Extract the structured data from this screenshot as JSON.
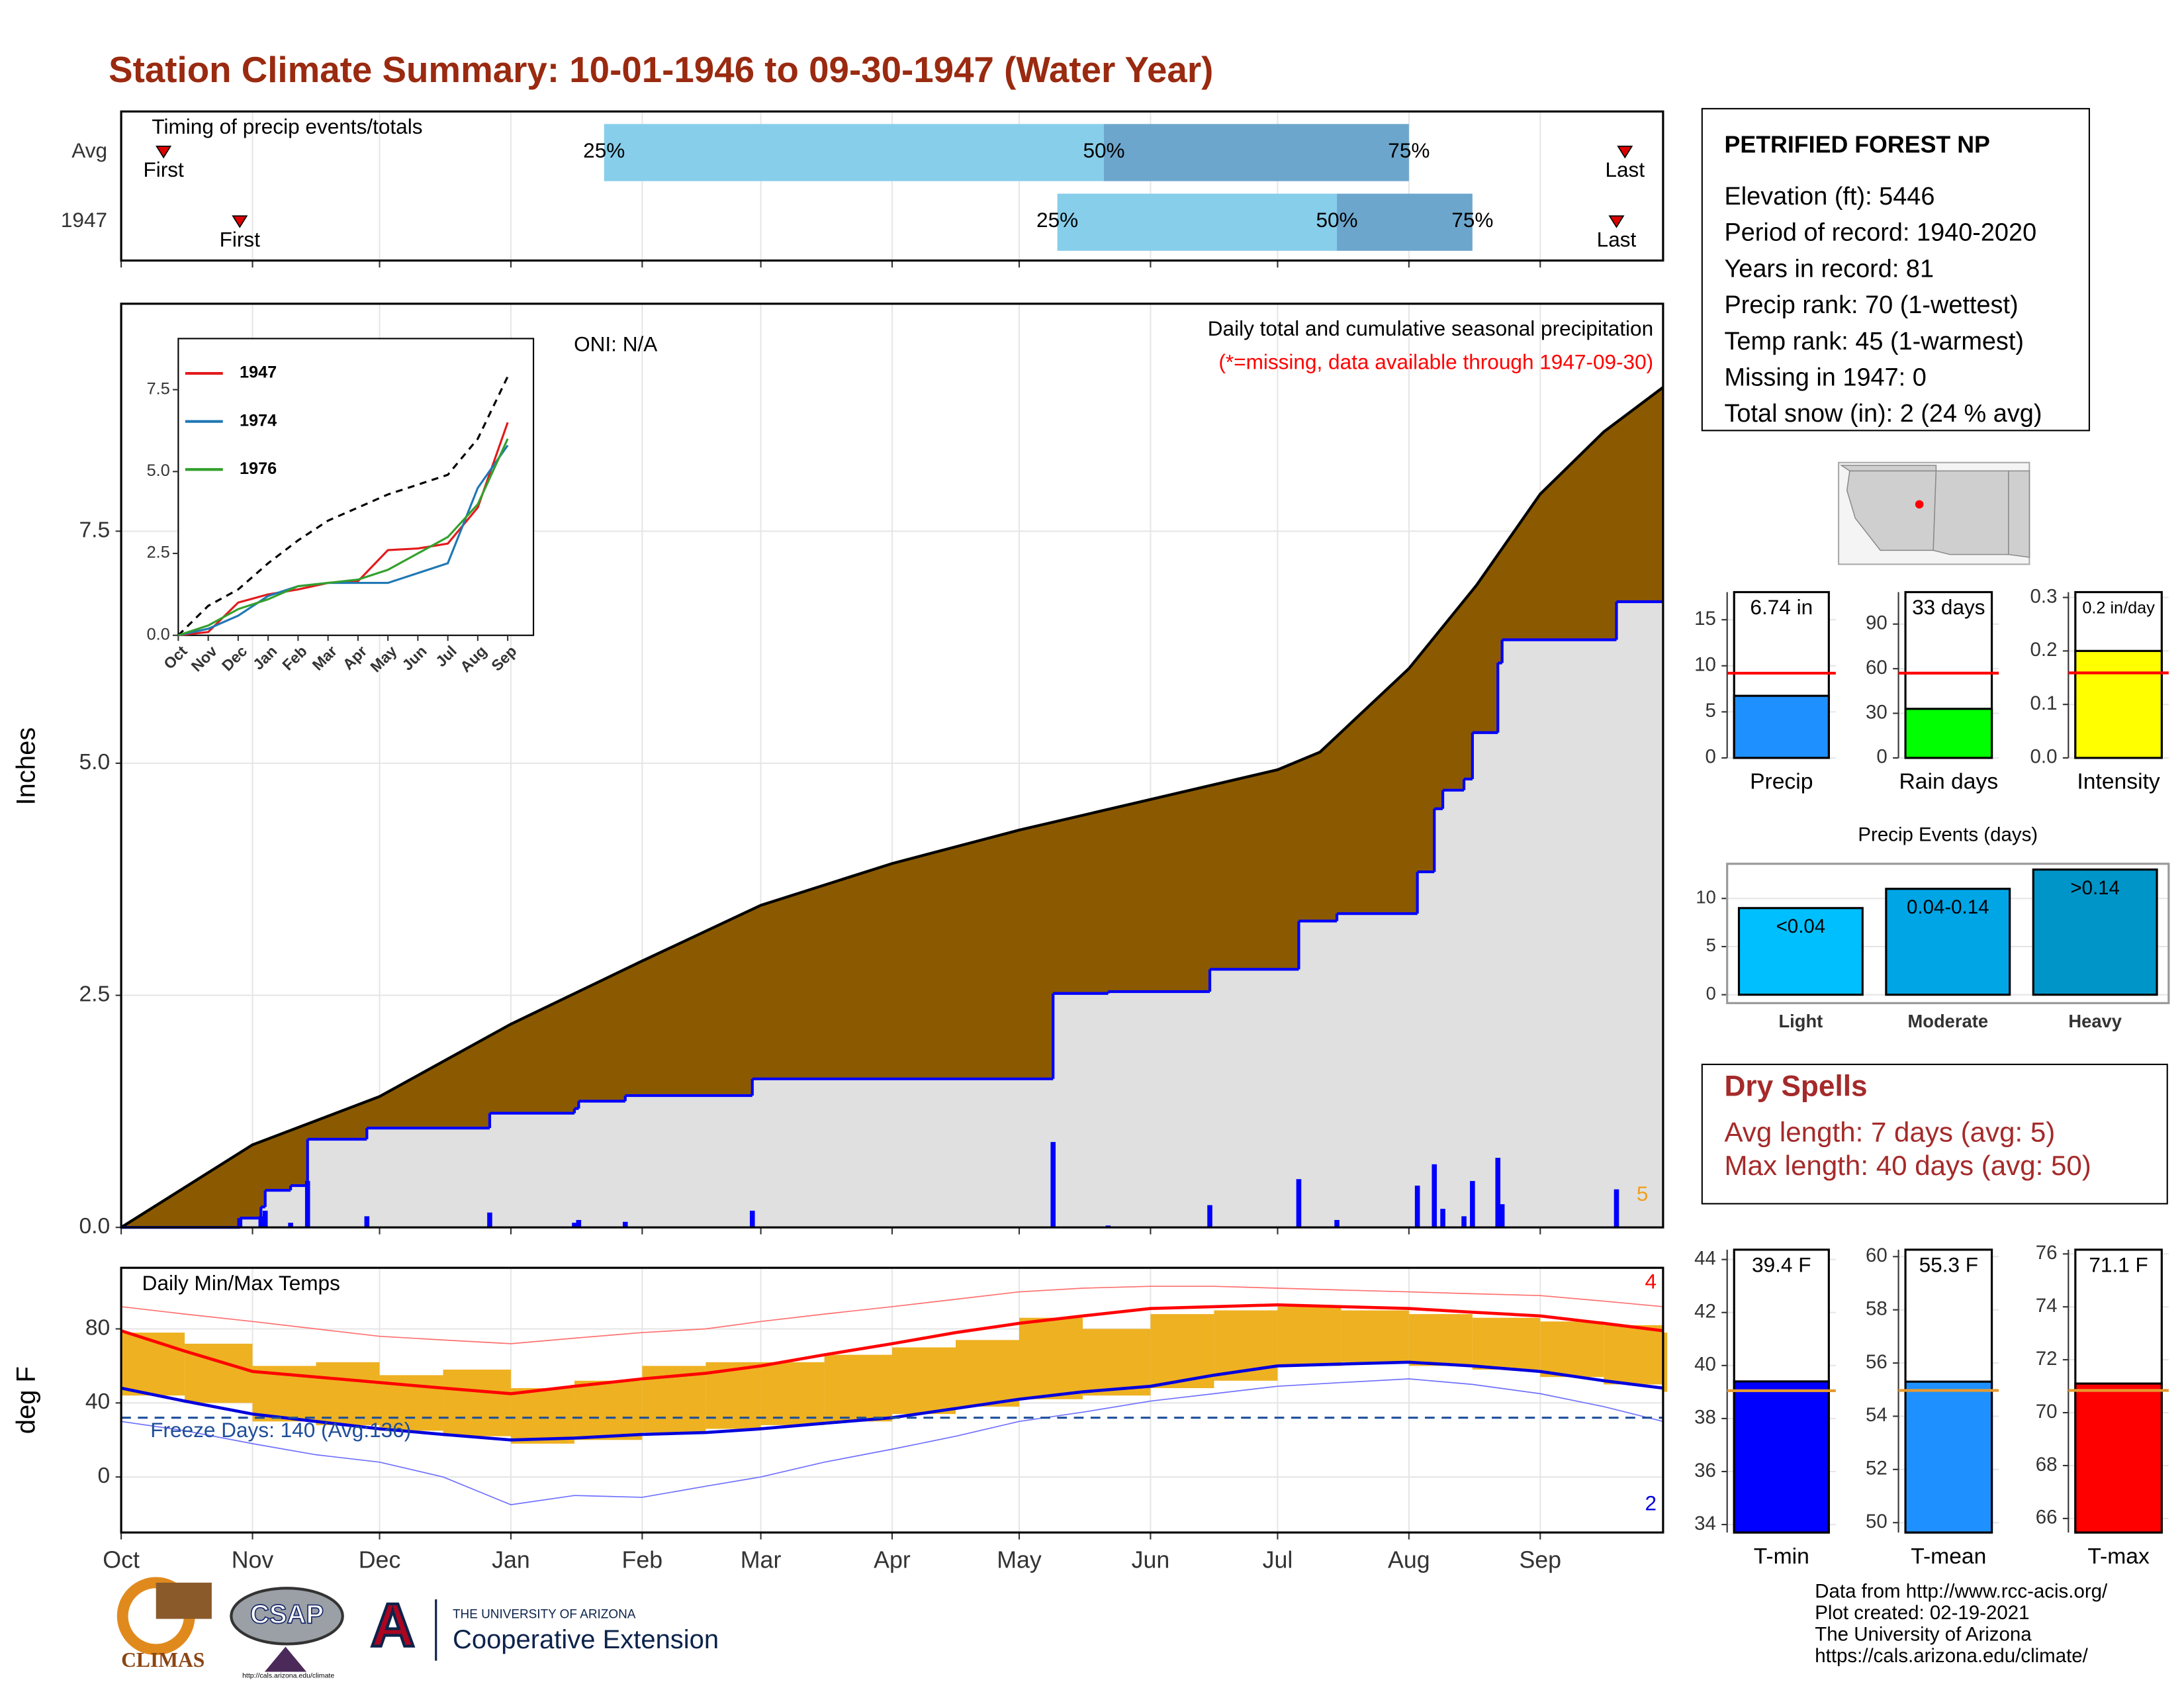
{
  "title": "Station Climate Summary: 10-01-1946 to 09-30-1947 (Water Year)",
  "chart_data": [
    {
      "type": "timing",
      "title": "Timing of precip events/totals",
      "xlim": [
        0,
        364
      ],
      "grid": true,
      "categories": [
        "Avg",
        "1947"
      ],
      "first": [
        10,
        28
      ],
      "last": [
        355,
        353
      ],
      "p25": [
        114,
        221
      ],
      "p50": [
        232,
        287
      ],
      "p75": [
        304,
        319
      ],
      "percent_labels": [
        "25%",
        "50%",
        "75%"
      ],
      "first_label": "First",
      "last_label": "Last",
      "colors": [
        "#87ceeb",
        "#6ca6cd"
      ],
      "marker_color": "#dd0000"
    },
    {
      "type": "precip",
      "title": "Daily total and cumulative seasonal precipitation",
      "subtitle": "(*=missing, data available through 1947-09-30)",
      "annotation": "ONI: N/A",
      "top_events_label": "5",
      "ylabel": "Inches",
      "xlim": [
        0,
        364
      ],
      "ylim": [
        0,
        9.95
      ],
      "grid": true,
      "yticks": [
        {
          "value": 0,
          "label": "0.0"
        },
        2.5,
        {
          "value": 5,
          "label": "5.0"
        },
        7.5
      ],
      "average": {
        "color": "#8b5a00",
        "x": [
          0,
          31,
          61,
          92,
          123,
          151,
          182,
          212,
          243,
          273,
          283,
          304,
          320,
          335,
          350,
          364
        ],
        "values": [
          0,
          0.89,
          1.41,
          2.19,
          2.87,
          3.47,
          3.92,
          4.28,
          4.61,
          4.93,
          5.12,
          6.02,
          6.92,
          7.9,
          8.57,
          9.05
        ]
      },
      "cumulative": {
        "color": "#0000ff",
        "x": [
          0,
          28,
          33,
          34,
          40,
          44,
          58,
          87,
          107,
          108,
          119,
          149,
          220,
          233,
          257,
          278,
          287,
          306,
          310,
          312,
          317,
          319,
          325,
          326,
          353
        ],
        "values": [
          0,
          0.1,
          0.22,
          0.4,
          0.45,
          0.95,
          1.07,
          1.23,
          1.28,
          1.36,
          1.42,
          1.6,
          2.52,
          2.54,
          2.78,
          3.3,
          3.38,
          3.83,
          4.51,
          4.71,
          4.83,
          5.33,
          6.08,
          6.33,
          6.74
        ]
      },
      "daily": {
        "color": "#0000ff",
        "x": [
          28,
          33,
          34,
          40,
          44,
          58,
          87,
          107,
          108,
          119,
          149,
          220,
          233,
          257,
          278,
          287,
          306,
          310,
          312,
          317,
          319,
          325,
          326,
          353
        ],
        "values": [
          0.1,
          0.12,
          0.18,
          0.05,
          0.5,
          0.12,
          0.16,
          0.05,
          0.08,
          0.06,
          0.18,
          0.92,
          0.02,
          0.24,
          0.52,
          0.08,
          0.45,
          0.68,
          0.2,
          0.12,
          0.5,
          0.75,
          0.25,
          0.41
        ]
      }
    },
    {
      "type": "line",
      "categories": [
        "Oct",
        "Nov",
        "Dec",
        "Jan",
        "Feb",
        "Mar",
        "Apr",
        "May",
        "Jun",
        "Jul",
        "Aug",
        "Sep"
      ],
      "ylim": [
        0,
        9.06
      ],
      "yticks": [
        {
          "value": 0,
          "label": "0.0"
        },
        2.5,
        {
          "value": 5,
          "label": "5.0"
        },
        7.5
      ],
      "average": {
        "color": "#000000",
        "values": [
          0,
          0.9,
          1.4,
          2.2,
          2.9,
          3.5,
          3.9,
          4.3,
          4.6,
          4.9,
          6.0,
          7.9
        ]
      },
      "series": [
        {
          "name": "1947",
          "color": "#e31a1c",
          "values": [
            0,
            0.1,
            1.0,
            1.25,
            1.4,
            1.6,
            1.65,
            2.6,
            2.65,
            2.8,
            3.9,
            6.5
          ]
        },
        {
          "name": "1974",
          "color": "#1f78b4",
          "values": [
            0,
            0.2,
            0.6,
            1.2,
            1.5,
            1.6,
            1.6,
            1.6,
            1.9,
            2.2,
            4.5,
            5.8
          ]
        },
        {
          "name": "1976",
          "color": "#33a02c",
          "values": [
            0,
            0.3,
            0.8,
            1.1,
            1.5,
            1.6,
            1.7,
            2.0,
            2.5,
            3.0,
            4.0,
            6.0
          ]
        }
      ]
    },
    {
      "type": "temperature",
      "title": "Daily Min/Max Temps",
      "ylabel": "deg F",
      "xlim": [
        0,
        364
      ],
      "ylim": [
        -30,
        113
      ],
      "yticks": [
        0,
        40,
        80
      ],
      "grid": true,
      "xticks": [
        {
          "value": 0,
          "label": "Oct"
        },
        {
          "value": 31,
          "label": "Nov"
        },
        {
          "value": 61,
          "label": "Dec"
        },
        {
          "value": 92,
          "label": "Jan"
        },
        {
          "value": 123,
          "label": "Feb"
        },
        {
          "value": 151,
          "label": "Mar"
        },
        {
          "value": 182,
          "label": "Apr"
        },
        {
          "value": 212,
          "label": "May"
        },
        {
          "value": 243,
          "label": "Jun"
        },
        {
          "value": 273,
          "label": "Jul"
        },
        {
          "value": 304,
          "label": "Aug"
        },
        {
          "value": 335,
          "label": "Sep"
        }
      ],
      "freeze_line": 32,
      "freeze_label": "Freeze Days: 140 (Avg:136)",
      "record_high_count": 4,
      "record_low_count": 2,
      "x": [
        0,
        15,
        31,
        46,
        61,
        76,
        92,
        107,
        123,
        138,
        151,
        166,
        182,
        197,
        212,
        227,
        243,
        258,
        273,
        288,
        304,
        319,
        335,
        350,
        364
      ],
      "tmax": [
        78,
        72,
        60,
        62,
        55,
        58,
        48,
        52,
        60,
        62,
        62,
        66,
        70,
        74,
        86,
        80,
        88,
        90,
        92,
        90,
        88,
        86,
        84,
        82,
        78
      ],
      "tmin": [
        44,
        40,
        30,
        28,
        25,
        22,
        18,
        20,
        24,
        26,
        28,
        30,
        34,
        38,
        42,
        44,
        48,
        52,
        60,
        62,
        60,
        58,
        54,
        50,
        46
      ],
      "normal_max": [
        79,
        68,
        57,
        54,
        51,
        48,
        45,
        49,
        53,
        56,
        60,
        66,
        72,
        78,
        83,
        87,
        91,
        92,
        93,
        92,
        91,
        89,
        87,
        83,
        79
      ],
      "normal_min": [
        48,
        41,
        34,
        30,
        26,
        23,
        20,
        21,
        23,
        24,
        26,
        29,
        32,
        37,
        42,
        46,
        49,
        55,
        60,
        61,
        62,
        60,
        57,
        52,
        48
      ],
      "record_high": [
        92,
        88,
        84,
        80,
        76,
        74,
        72,
        75,
        78,
        80,
        84,
        88,
        92,
        96,
        100,
        102,
        103,
        103,
        102,
        101,
        100,
        99,
        98,
        95,
        92
      ],
      "record_low": [
        30,
        25,
        18,
        12,
        8,
        0,
        -15,
        -10,
        -11,
        -5,
        0,
        8,
        15,
        22,
        30,
        35,
        41,
        45,
        49,
        51,
        53,
        50,
        45,
        38,
        30
      ],
      "colors": {
        "range": "#eeb122",
        "normal_max": "#ff0000",
        "normal_min": "#0000dd",
        "record_high": "#ff7070",
        "record_low": "#7070ff",
        "freeze": "#1f4e99"
      }
    },
    {
      "type": "single_bar",
      "categories": [
        "Precip"
      ],
      "values": [
        6.74
      ],
      "value_labels": [
        "6.74 in"
      ],
      "average": 9.2,
      "average_color": "#ff0000",
      "color": "#1e90ff",
      "ylim": [
        0,
        18
      ],
      "yticks": [
        0,
        5,
        10,
        15
      ]
    },
    {
      "type": "single_bar",
      "categories": [
        "Rain days"
      ],
      "values": [
        33
      ],
      "value_labels": [
        "33 days"
      ],
      "average": 57,
      "average_color": "#ff0000",
      "color": "#00ff00",
      "ylim": [
        0,
        111.5
      ],
      "yticks": [
        0,
        30,
        60,
        90
      ]
    },
    {
      "type": "single_bar",
      "categories": [
        "Intensity"
      ],
      "values": [
        0.2
      ],
      "value_labels": [
        "0.2 in/day"
      ],
      "average": 0.159,
      "average_color": "#ff0000",
      "color": "#ffff00",
      "ylim": [
        0,
        0.31
      ],
      "yticks": [
        {
          "value": 0,
          "label": "0.0"
        },
        0.1,
        0.2,
        0.3
      ]
    },
    {
      "type": "bar",
      "title": "Precip Events (days)",
      "categories": [
        "Light",
        "Moderate",
        "Heavy"
      ],
      "values": [
        9,
        11,
        13
      ],
      "bar_labels": [
        "<0.04",
        "0.04-0.14",
        ">0.14"
      ],
      "colors": [
        "#00bfff",
        "#00a5e6",
        "#0095c8"
      ],
      "ylim": [
        -0.87,
        13.6
      ],
      "yticks": [
        0,
        5,
        10
      ]
    },
    {
      "type": "single_bar",
      "categories": [
        "T-min"
      ],
      "values": [
        39.4
      ],
      "value_labels": [
        "39.4 F"
      ],
      "average": 39.05,
      "average_color": "#e69a30",
      "color": "#0000ff",
      "ylim": [
        33.7,
        44.37
      ],
      "yticks": [
        34,
        36,
        38,
        40,
        42,
        44
      ]
    },
    {
      "type": "single_bar",
      "categories": [
        "T-mean"
      ],
      "values": [
        55.3
      ],
      "value_labels": [
        "55.3 F"
      ],
      "average": 54.97,
      "average_color": "#e69a30",
      "color": "#1e90ff",
      "ylim": [
        49.63,
        60.26
      ],
      "yticks": [
        50,
        52,
        54,
        56,
        58,
        60
      ]
    },
    {
      "type": "single_bar",
      "categories": [
        "T-max"
      ],
      "values": [
        71.1
      ],
      "value_labels": [
        "71.1 F"
      ],
      "average": 70.84,
      "average_color": "#e69a30",
      "color": "#ff0000",
      "ylim": [
        65.47,
        76.16
      ],
      "yticks": [
        66,
        68,
        70,
        72,
        74,
        76
      ]
    }
  ],
  "station": {
    "name": "PETRIFIED FOREST NP",
    "lines": [
      "Elevation (ft): 5446",
      "Period of record: 1940-2020",
      "Years in record: 81",
      "Precip rank: 70 (1-wettest)",
      "Temp rank: 45 (1-warmest)",
      "Missing in 1947: 0",
      "Total snow (in): 2 (24 % avg)"
    ]
  },
  "dry_spells": {
    "title": "Dry Spells",
    "lines": [
      "Avg length: 7 days (avg: 5)",
      "Max length: 40 days (avg: 50)"
    ]
  },
  "footer": [
    "Data from http://www.rcc-acis.org/",
    "Plot created: 02-19-2021",
    "The University of Arizona",
    "https://cals.arizona.edu/climate/"
  ],
  "logos": {
    "climas": "CLIMAS",
    "csap": "CSAP",
    "csap_url": "http://cals.arizona.edu/climate",
    "ua_letter": "A",
    "ua_name": "THE UNIVERSITY OF ARIZONA",
    "ua_unit": "Cooperative Extension"
  }
}
